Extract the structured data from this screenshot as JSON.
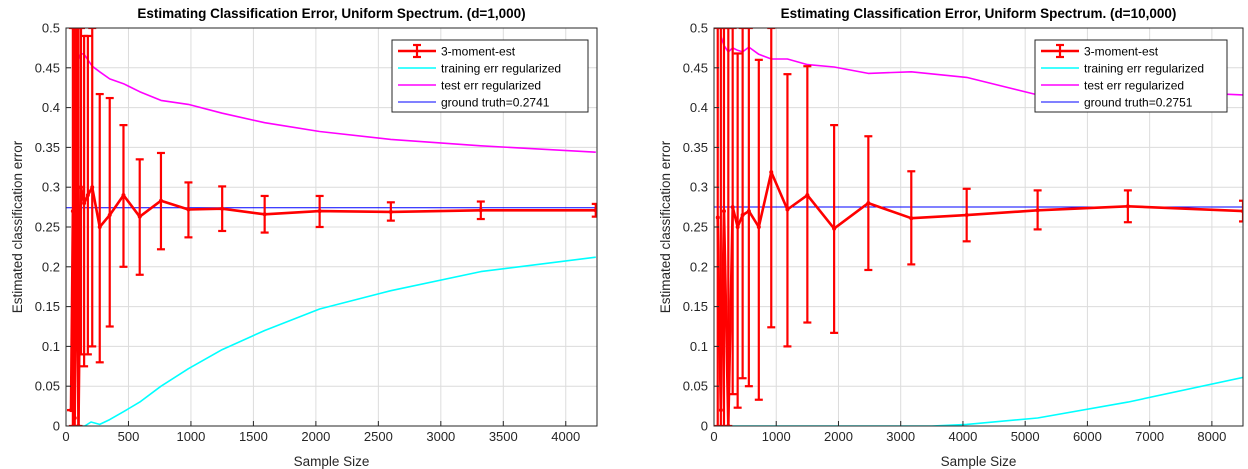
{
  "chart_data": [
    {
      "type": "line",
      "title": "Estimating Classification Error, Uniform Spectrum. (d=1,000)",
      "xlabel": "Sample Size",
      "ylabel": "Estimated classification error",
      "xlim": [
        0,
        4250
      ],
      "ylim": [
        0,
        0.5
      ],
      "xticks": [
        0,
        500,
        1000,
        1500,
        2000,
        2500,
        3000,
        3500,
        4000
      ],
      "xtick_labels": [
        "0",
        "500",
        "1000",
        "1500",
        "2000",
        "2500",
        "3000",
        "3500",
        "4000"
      ],
      "yticks": [
        0,
        0.05,
        0.1,
        0.15,
        0.2,
        0.25,
        0.3,
        0.35,
        0.4,
        0.45,
        0.5
      ],
      "ytick_labels": [
        "0",
        "0.05",
        "0.1",
        "0.15",
        "0.2",
        "0.25",
        "0.3",
        "0.35",
        "0.4",
        "0.45",
        "0.5"
      ],
      "grid": true,
      "legend_position": "top-right",
      "series": [
        {
          "name": "3-moment-est",
          "color": "#ff0000",
          "style": "errorbar",
          "x": [
            40,
            55,
            70,
            85,
            100,
            120,
            145,
            175,
            210,
            270,
            350,
            460,
            590,
            760,
            980,
            1250,
            1590,
            2030,
            2600,
            3320,
            4240
          ],
          "y": [
            0.02,
            0.27,
            0.01,
            0.29,
            0.0,
            0.3,
            0.28,
            0.29,
            0.3,
            0.25,
            0.265,
            0.29,
            0.263,
            0.283,
            0.272,
            0.273,
            0.266,
            0.27,
            0.269,
            0.271,
            0.271
          ],
          "low": [
            0.02,
            0.0,
            0.0,
            0.1,
            0.0,
            0.09,
            0.075,
            0.09,
            0.1,
            0.08,
            0.125,
            0.2,
            0.19,
            0.222,
            0.237,
            0.245,
            0.243,
            0.25,
            0.258,
            0.26,
            0.263
          ],
          "high": [
            0.02,
            0.5,
            0.5,
            0.5,
            0.5,
            0.5,
            0.49,
            0.49,
            0.5,
            0.417,
            0.412,
            0.378,
            0.335,
            0.343,
            0.306,
            0.301,
            0.289,
            0.289,
            0.281,
            0.282,
            0.279
          ]
        },
        {
          "name": "training err regularized",
          "color": "#00ffff",
          "x": [
            100,
            150,
            200,
            270,
            350,
            460,
            590,
            760,
            980,
            1250,
            1590,
            2030,
            2600,
            3320,
            4240
          ],
          "y": [
            0.0,
            0.0,
            0.005,
            0.002,
            0.008,
            0.018,
            0.03,
            0.05,
            0.072,
            0.096,
            0.12,
            0.147,
            0.17,
            0.194,
            0.212
          ]
        },
        {
          "name": "test err regularized",
          "color": "#ff00ff",
          "x": [
            80,
            100,
            120,
            145,
            175,
            210,
            270,
            350,
            460,
            590,
            760,
            980,
            1250,
            1590,
            2030,
            2600,
            3320,
            4240
          ],
          "y": [
            0.4,
            0.46,
            0.468,
            0.467,
            0.46,
            0.452,
            0.445,
            0.436,
            0.43,
            0.42,
            0.409,
            0.404,
            0.393,
            0.381,
            0.37,
            0.36,
            0.352,
            0.344
          ]
        },
        {
          "name": "ground truth=0.2741",
          "color": "#0000ff",
          "x": [
            0,
            4250
          ],
          "y": [
            0.2741,
            0.2741
          ]
        }
      ]
    },
    {
      "type": "line",
      "title": "Estimating Classification Error, Uniform Spectrum. (d=10,000)",
      "xlabel": "Sample Size",
      "ylabel": "Estimated classification error",
      "xlim": [
        0,
        8500
      ],
      "ylim": [
        0,
        0.5
      ],
      "xticks": [
        0,
        1000,
        2000,
        3000,
        4000,
        5000,
        6000,
        7000,
        8000
      ],
      "xtick_labels": [
        "0",
        "1000",
        "2000",
        "3000",
        "4000",
        "5000",
        "6000",
        "7000",
        "8000"
      ],
      "yticks": [
        0,
        0.05,
        0.1,
        0.15,
        0.2,
        0.25,
        0.3,
        0.35,
        0.4,
        0.45,
        0.5
      ],
      "ytick_labels": [
        "0",
        "0.05",
        "0.1",
        "0.15",
        "0.2",
        "0.25",
        "0.3",
        "0.35",
        "0.4",
        "0.45",
        "0.5"
      ],
      "grid": true,
      "legend_position": "top-right",
      "series": [
        {
          "name": "3-moment-est",
          "color": "#ff0000",
          "style": "errorbar",
          "x": [
            60,
            110,
            160,
            230,
            300,
            380,
            460,
            560,
            720,
            920,
            1180,
            1500,
            1930,
            2480,
            3170,
            4060,
            5200,
            6650,
            8500
          ],
          "y": [
            0.262,
            0.02,
            0.27,
            0.0,
            0.275,
            0.25,
            0.265,
            0.27,
            0.25,
            0.319,
            0.272,
            0.29,
            0.248,
            0.28,
            0.261,
            0.265,
            0.271,
            0.276,
            0.27
          ],
          "low": [
            0.0,
            0.0,
            0.0,
            0.0,
            0.04,
            0.023,
            0.06,
            0.05,
            0.033,
            0.124,
            0.1,
            0.13,
            0.117,
            0.196,
            0.203,
            0.232,
            0.247,
            0.256,
            0.257
          ],
          "high": [
            0.5,
            0.5,
            0.5,
            0.5,
            0.5,
            0.468,
            0.5,
            0.5,
            0.46,
            0.5,
            0.442,
            0.452,
            0.378,
            0.364,
            0.32,
            0.298,
            0.296,
            0.296,
            0.283
          ]
        },
        {
          "name": "training err regularized",
          "color": "#00ffff",
          "x": [
            0,
            1000,
            2000,
            3000,
            3500,
            4060,
            5200,
            6650,
            8500
          ],
          "y": [
            0.0,
            0.0,
            0.0,
            0.0,
            0.0,
            0.002,
            0.01,
            0.03,
            0.061
          ]
        },
        {
          "name": "test err regularized",
          "color": "#ff00ff",
          "x": [
            110,
            160,
            230,
            300,
            380,
            460,
            560,
            720,
            920,
            1180,
            1500,
            1930,
            2480,
            3170,
            4060,
            5200,
            6650,
            8500
          ],
          "y": [
            0.49,
            0.478,
            0.47,
            0.475,
            0.472,
            0.47,
            0.476,
            0.467,
            0.461,
            0.461,
            0.454,
            0.451,
            0.443,
            0.445,
            0.438,
            0.416,
            0.422,
            0.416
          ]
        },
        {
          "name": "ground truth=0.2751",
          "color": "#0000ff",
          "x": [
            0,
            8500
          ],
          "y": [
            0.2751,
            0.2751
          ]
        }
      ]
    }
  ]
}
